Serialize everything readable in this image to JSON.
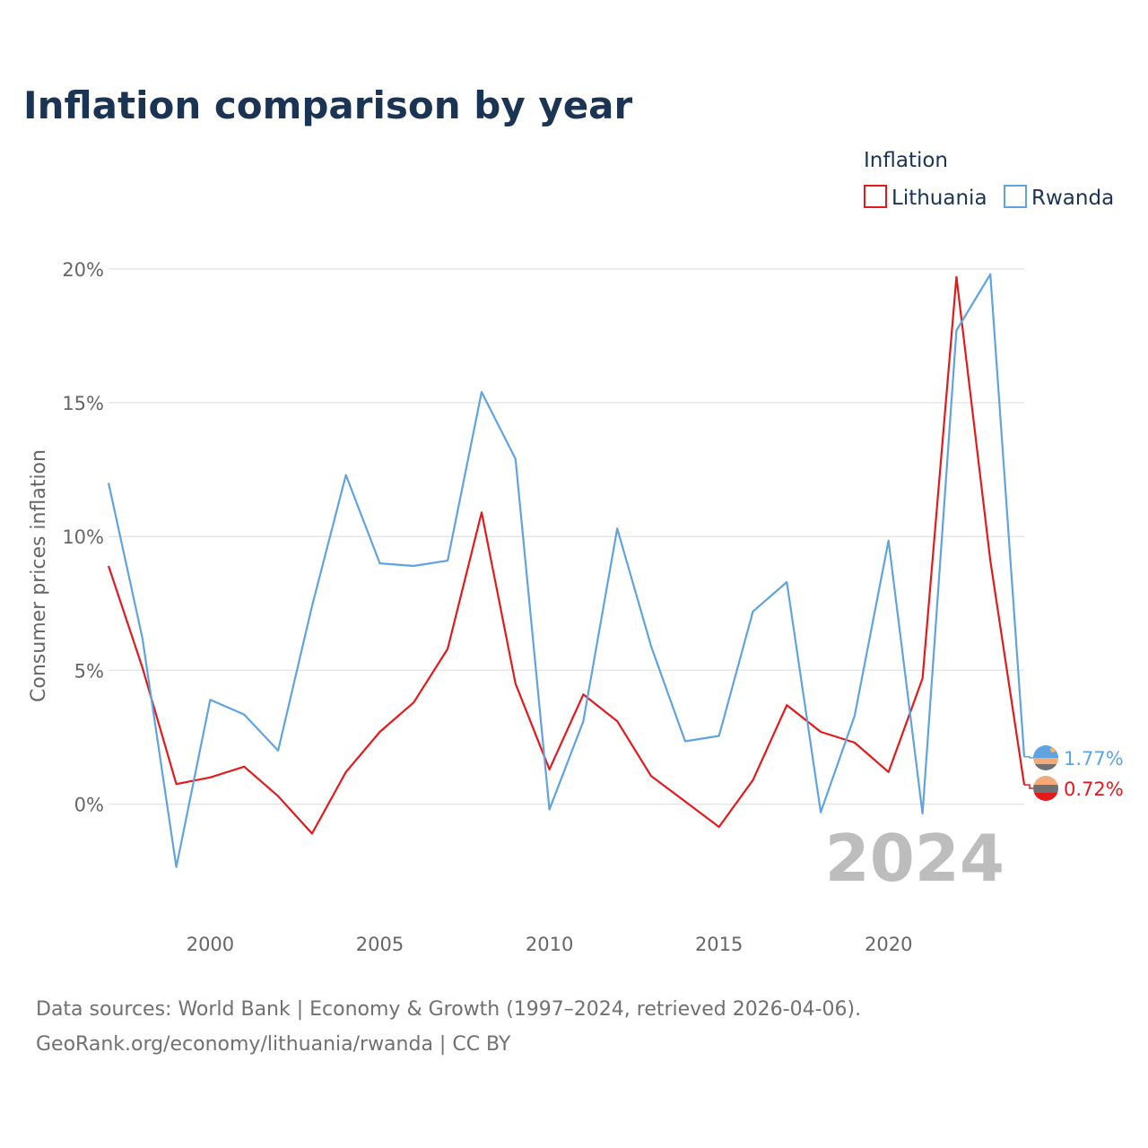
{
  "chart_data": {
    "type": "line",
    "title": "Inflation comparison by year",
    "legend_title": "Inflation",
    "ylabel": "Consumer prices inflation",
    "xlabel": "",
    "x": [
      1997,
      1998,
      1999,
      2000,
      2001,
      2002,
      2003,
      2004,
      2005,
      2006,
      2007,
      2008,
      2009,
      2010,
      2011,
      2012,
      2013,
      2014,
      2015,
      2016,
      2017,
      2018,
      2019,
      2020,
      2021,
      2022,
      2023,
      2024
    ],
    "xlim": [
      1997,
      2024
    ],
    "ylim": [
      -3.8,
      21
    ],
    "x_ticks": [
      2000,
      2005,
      2010,
      2015,
      2020
    ],
    "x_tick_labels": [
      "2000",
      "2005",
      "2010",
      "2015",
      "2020"
    ],
    "y_ticks": [
      0,
      5,
      10,
      15,
      20
    ],
    "y_tick_labels": [
      "0%",
      "5%",
      "10%",
      "15%",
      "20%"
    ],
    "grid": true,
    "legend_position": "top-right",
    "watermark_year": "2024",
    "series": [
      {
        "name": "Lithuania",
        "color": "#e3191c",
        "values": [
          8.9,
          5.1,
          0.75,
          1.0,
          1.4,
          0.3,
          -1.1,
          1.2,
          2.7,
          3.8,
          5.8,
          10.9,
          4.5,
          1.3,
          4.1,
          3.1,
          1.05,
          0.1,
          -0.85,
          0.9,
          3.7,
          2.7,
          2.3,
          1.2,
          4.7,
          19.7,
          9.1,
          0.72
        ],
        "end_label": "0.72%"
      },
      {
        "name": "Rwanda",
        "color": "#5fa3e0",
        "values": [
          12.0,
          6.2,
          -2.35,
          3.9,
          3.35,
          2.0,
          7.4,
          12.3,
          9.0,
          8.9,
          9.1,
          15.4,
          12.9,
          -0.2,
          3.1,
          10.3,
          5.9,
          2.35,
          2.55,
          7.2,
          8.3,
          -0.3,
          3.3,
          9.85,
          -0.35,
          17.7,
          19.8,
          1.77
        ],
        "end_label": "1.77%"
      }
    ]
  },
  "footer": {
    "source_line": "Data sources: World Bank | Economy & Growth (1997–2024, retrieved 2026-04-06).",
    "credit_line": "GeoRank.org/economy/lithuania/rwanda | CC BY"
  }
}
